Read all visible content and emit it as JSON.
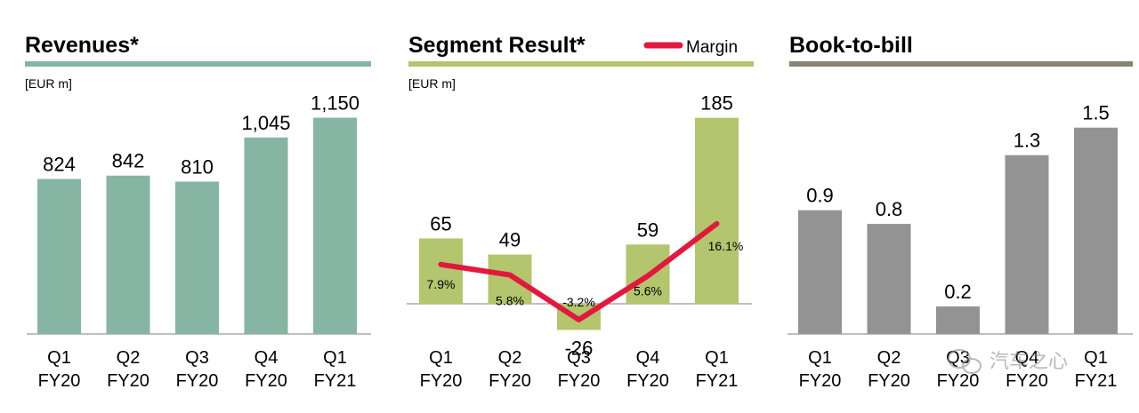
{
  "colors": {
    "revenues_bar": "#86b5a4",
    "revenues_rule": "#86b5a4",
    "segment_bar": "#b3c56d",
    "segment_rule": "#b3c56d",
    "margin_line": "#e2183f",
    "btb_bar": "#939393",
    "btb_rule": "#8c8472",
    "axis": "#7f7f7f"
  },
  "watermark": {
    "icon": "wechat-icon",
    "text": "汽车之心"
  },
  "chart_data": [
    {
      "id": "revenues",
      "type": "bar",
      "title": "Revenues*",
      "unit_label": "[EUR m]",
      "categories": [
        "Q1 FY20",
        "Q2 FY20",
        "Q3 FY20",
        "Q4 FY20",
        "Q1 FY21"
      ],
      "tick_lines": [
        [
          "Q1",
          "FY20"
        ],
        [
          "Q2",
          "FY20"
        ],
        [
          "Q3",
          "FY20"
        ],
        [
          "Q4",
          "FY20"
        ],
        [
          "Q1",
          "FY21"
        ]
      ],
      "values": [
        824,
        842,
        810,
        1045,
        1150
      ],
      "value_labels": [
        "824",
        "842",
        "810",
        "1,045",
        "1,150"
      ],
      "ylim": [
        0,
        1280
      ]
    },
    {
      "id": "segment",
      "type": "bar",
      "title": "Segment Result*",
      "unit_label": "[EUR m]",
      "legend": "Margin",
      "legend_position": "top-right",
      "categories": [
        "Q1 FY20",
        "Q2 FY20",
        "Q3 FY20",
        "Q4 FY20",
        "Q1 FY21"
      ],
      "tick_lines": [
        [
          "Q1",
          "FY20"
        ],
        [
          "Q2",
          "FY20"
        ],
        [
          "Q3",
          "FY20"
        ],
        [
          "Q4",
          "FY20"
        ],
        [
          "Q1",
          "FY21"
        ]
      ],
      "values": [
        65,
        49,
        -26,
        59,
        185
      ],
      "value_labels": [
        "65",
        "49",
        "-26",
        "59",
        "185"
      ],
      "ylim": [
        -30,
        205
      ],
      "margin_series": {
        "name": "Margin",
        "values": [
          7.9,
          5.8,
          -3.2,
          5.6,
          16.1
        ],
        "labels": [
          "7.9%",
          "5.8%",
          "-3.2%",
          "5.6%",
          "16.1%"
        ]
      }
    },
    {
      "id": "btb",
      "type": "bar",
      "title": "Book-to-bill",
      "categories": [
        "Q1 FY20",
        "Q2 FY20",
        "Q3 FY20",
        "Q4 FY20",
        "Q1 FY21"
      ],
      "tick_lines": [
        [
          "Q1",
          "FY20"
        ],
        [
          "Q2",
          "FY20"
        ],
        [
          "Q3",
          "FY20"
        ],
        [
          "Q4",
          "FY20"
        ],
        [
          "Q1",
          "FY21"
        ]
      ],
      "values": [
        0.9,
        0.8,
        0.2,
        1.3,
        1.5
      ],
      "value_labels": [
        "0.9",
        "0.8",
        "0.2",
        "1.3",
        "1.5"
      ],
      "ylim": [
        0,
        1.75
      ]
    }
  ]
}
